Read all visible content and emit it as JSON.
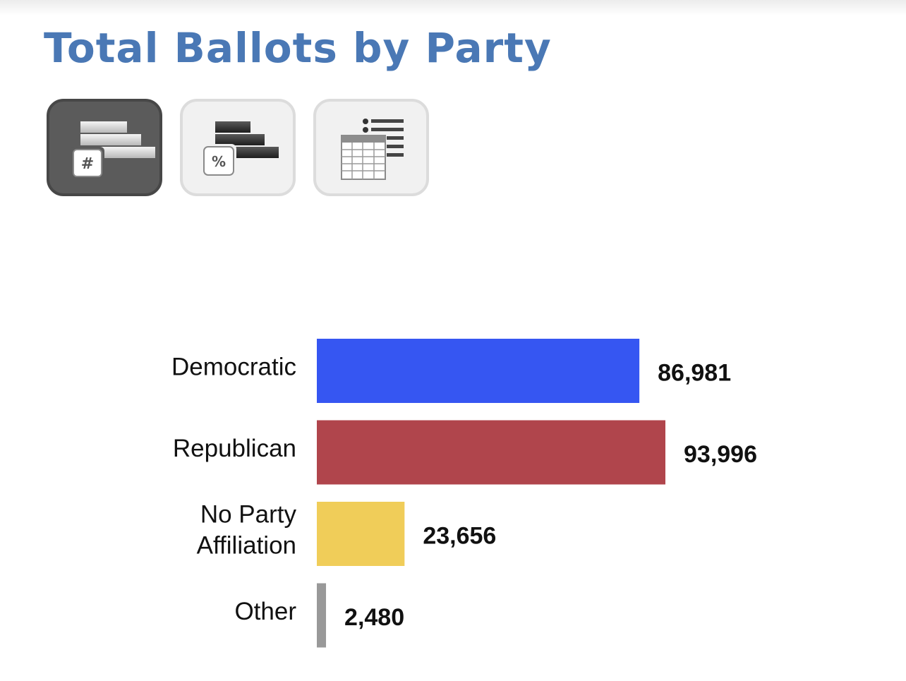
{
  "title": "Total Ballots by Party",
  "toolbar": {
    "buttons": [
      {
        "icon": "count-bars-icon",
        "glyph": "#",
        "state": "active"
      },
      {
        "icon": "percent-bars-icon",
        "glyph": "%",
        "state": "inactive"
      },
      {
        "icon": "table-list-icon",
        "glyph": "",
        "state": "inactive"
      }
    ]
  },
  "colors": {
    "title": "#4a78b5",
    "democratic": "#3656f2",
    "republican": "#b0454c",
    "no_party": "#f0cd59",
    "other": "#999999"
  },
  "chart_data": {
    "type": "bar",
    "orientation": "horizontal",
    "categories": [
      "Democratic",
      "Republican",
      "No Party Affiliation",
      "Other"
    ],
    "category_lines": [
      [
        "Democratic"
      ],
      [
        "Republican"
      ],
      [
        "No Party",
        "Affiliation"
      ],
      [
        "Other"
      ]
    ],
    "values": [
      86981,
      93996,
      23656,
      2480
    ],
    "value_labels": [
      "86,981",
      "93,996",
      "23,656",
      "2,480"
    ],
    "colors": [
      "#3656f2",
      "#b0454c",
      "#f0cd59",
      "#999999"
    ],
    "title": "Total Ballots by Party",
    "xlabel": "",
    "ylabel": "",
    "grid": false,
    "legend": "none"
  }
}
